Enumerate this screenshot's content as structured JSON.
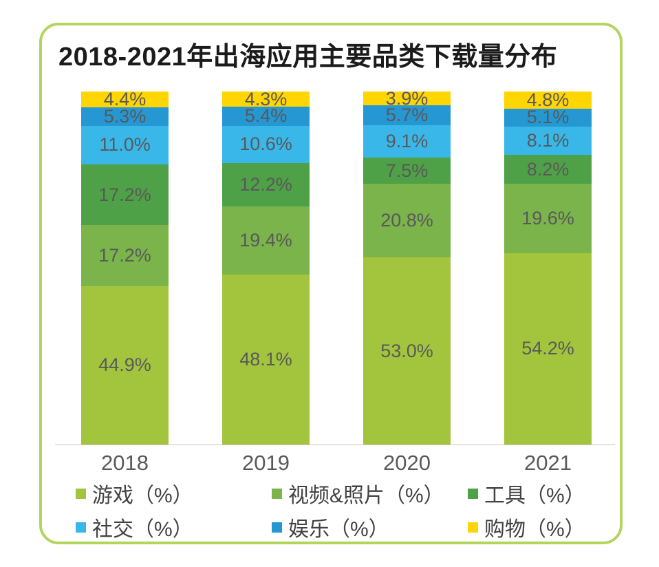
{
  "title": "2018-2021年出海应用主要品类下载量分布",
  "chart_data": {
    "type": "bar",
    "stacked": true,
    "title": "2018-2021年出海应用主要品类下载量分布",
    "categories": [
      "2018",
      "2019",
      "2020",
      "2021"
    ],
    "series": [
      {
        "name": "游戏（%）",
        "color": "#a3c53e",
        "values": [
          44.9,
          48.1,
          53.0,
          54.2
        ]
      },
      {
        "name": "视频&照片（%）",
        "color": "#7ab44b",
        "values": [
          17.2,
          19.4,
          20.8,
          19.6
        ]
      },
      {
        "name": "工具（%）",
        "color": "#4fa147",
        "values": [
          17.2,
          12.2,
          7.5,
          8.2
        ]
      },
      {
        "name": "社交（%）",
        "color": "#3ab7e9",
        "values": [
          11.0,
          10.6,
          9.1,
          8.1
        ]
      },
      {
        "name": "娱乐（%）",
        "color": "#2597d3",
        "values": [
          5.3,
          5.4,
          5.7,
          5.1
        ]
      },
      {
        "name": "购物（%）",
        "color": "#ffd503",
        "values": [
          4.4,
          4.3,
          3.9,
          4.8
        ]
      }
    ],
    "value_suffix": "%",
    "ylim": [
      0,
      100
    ],
    "xlabel": "",
    "ylabel": "",
    "grid": false,
    "legend_position": "bottom",
    "colors": {
      "card_border": "#b2d55e",
      "axis_line": "#c4c4c4",
      "segment_label": "#595959",
      "axis_label": "#595959",
      "legend_label": "#424242",
      "title_text": "#1b1b1b"
    }
  }
}
